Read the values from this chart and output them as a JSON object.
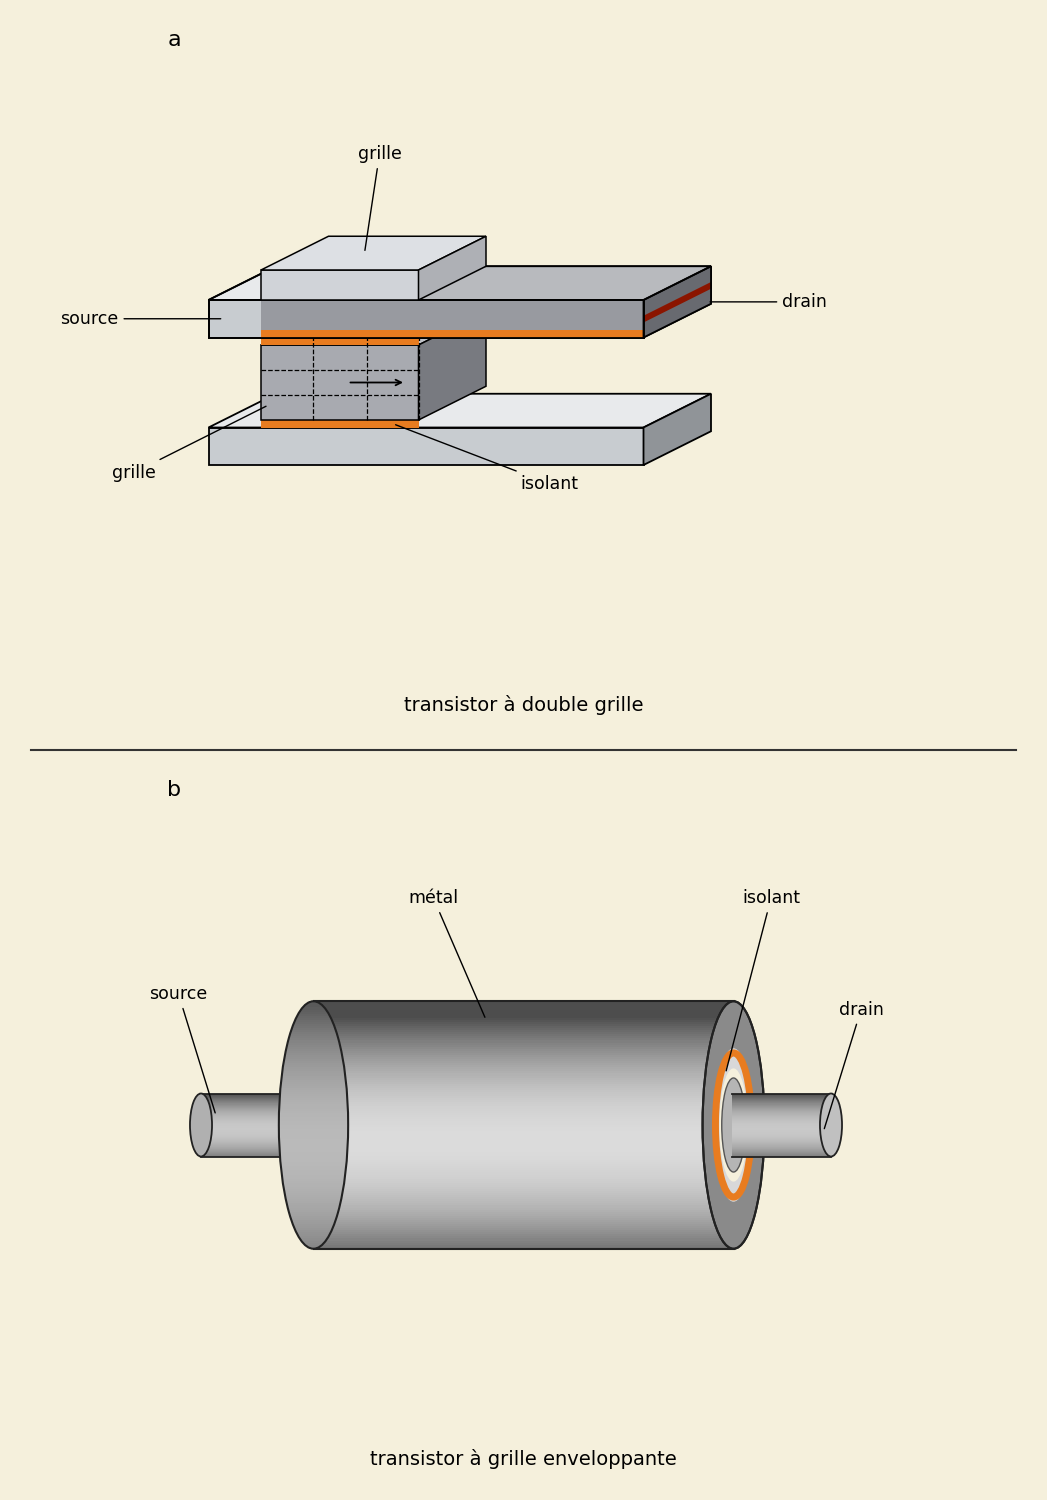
{
  "bg_color": "#f5f0dc",
  "orange_color": "#e87c20",
  "dark_red_color": "#8B1500",
  "label_a": "a",
  "label_b": "b",
  "title_a": "transistor à double grille",
  "title_b": "transistor à grille enveloppante",
  "labels_a": {
    "grille_top": "grille",
    "source": "source",
    "drain": "drain",
    "grille_bottom": "grille",
    "isolant": "isolant"
  },
  "labels_b": {
    "metal": "métal",
    "isolant": "isolant",
    "source": "source",
    "drain": "drain"
  }
}
